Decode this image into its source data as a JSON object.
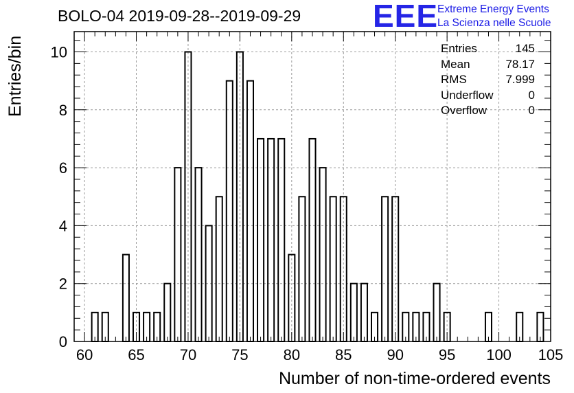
{
  "title": "BOLO-04 2019-09-28--2019-09-29",
  "logo": {
    "mark": "EEE",
    "line1": "Extreme Energy Events",
    "line2": "La Scienza nelle Scuole"
  },
  "stats": [
    {
      "label": "Entries",
      "value": "145"
    },
    {
      "label": "Mean",
      "value": "78.17"
    },
    {
      "label": "RMS",
      "value": "7.999"
    },
    {
      "label": "Underflow",
      "value": "0"
    },
    {
      "label": "Overflow",
      "value": "0"
    }
  ],
  "chart_data": {
    "type": "bar",
    "xlabel": "Number of non-time-ordered events",
    "ylabel": "Entries/bin",
    "xlim": [
      59,
      105
    ],
    "ylim": [
      0,
      10.7
    ],
    "xticks": [
      60,
      65,
      70,
      75,
      80,
      85,
      90,
      95,
      100,
      105
    ],
    "yticks": [
      0,
      2,
      4,
      6,
      8,
      10
    ],
    "grid": true,
    "x": [
      61,
      62,
      64,
      65,
      66,
      67,
      68,
      69,
      70,
      71,
      72,
      73,
      74,
      75,
      76,
      77,
      78,
      79,
      80,
      81,
      82,
      83,
      84,
      85,
      86,
      87,
      88,
      89,
      90,
      91,
      92,
      93,
      94,
      95,
      99,
      102,
      104
    ],
    "values": [
      1,
      1,
      3,
      1,
      1,
      1,
      2,
      6,
      10,
      6,
      4,
      5,
      9,
      10,
      9,
      7,
      7,
      7,
      3,
      5,
      7,
      6,
      5,
      5,
      2,
      2,
      1,
      5,
      5,
      1,
      1,
      1,
      2,
      1,
      1,
      1,
      1
    ]
  }
}
